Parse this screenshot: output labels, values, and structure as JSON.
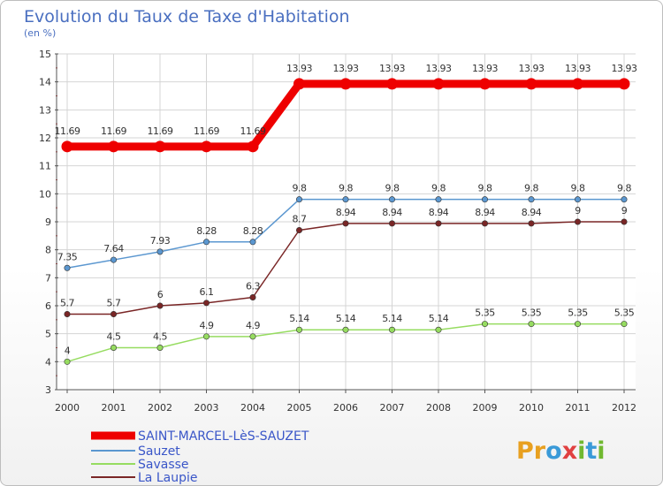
{
  "chart_data": {
    "type": "line",
    "title": "Evolution du Taux de Taxe d'Habitation",
    "subtitle": "(en %)",
    "x": [
      2000,
      2001,
      2002,
      2003,
      2004,
      2005,
      2006,
      2007,
      2008,
      2009,
      2010,
      2011,
      2012
    ],
    "ylim": [
      3,
      15
    ],
    "yticks": [
      3,
      4,
      5,
      6,
      7,
      8,
      9,
      10,
      11,
      12,
      13,
      14,
      15
    ],
    "grid": true,
    "legend": "bottom-left",
    "series": [
      {
        "name": "SAINT-MARCEL-LèS-SAUZET",
        "color": "#ee0000",
        "values": [
          11.69,
          11.69,
          11.69,
          11.69,
          11.69,
          13.93,
          13.93,
          13.93,
          13.93,
          13.93,
          13.93,
          13.93,
          13.93
        ],
        "labels": [
          "11.69",
          "11.69",
          "11.69",
          "11.69",
          "11.69",
          "13.93",
          "13.93",
          "13.93",
          "13.93",
          "13.93",
          "13.93",
          "13.93",
          "13.93"
        ]
      },
      {
        "name": "Sauzet",
        "color": "#5b97d0",
        "values": [
          7.35,
          7.64,
          7.93,
          8.28,
          8.28,
          9.8,
          9.8,
          9.8,
          9.8,
          9.8,
          9.8,
          9.8,
          9.8
        ],
        "labels": [
          "7.35",
          "7.64",
          "7.93",
          "8.28",
          "8.28",
          "9.8",
          "9.8",
          "9.8",
          "9.8",
          "9.8",
          "9.8",
          "9.8",
          "9.8"
        ]
      },
      {
        "name": "Savasse",
        "color": "#96dc60",
        "values": [
          4,
          4.5,
          4.5,
          4.9,
          4.9,
          5.14,
          5.14,
          5.14,
          5.14,
          5.35,
          5.35,
          5.35,
          5.35
        ],
        "labels": [
          "4",
          "4.5",
          "4.5",
          "4.9",
          "4.9",
          "5.14",
          "5.14",
          "5.14",
          "5.14",
          "5.35",
          "5.35",
          "5.35",
          "5.35"
        ]
      },
      {
        "name": "La Laupie",
        "color": "#7a2626",
        "values": [
          5.7,
          5.7,
          6,
          6.1,
          6.3,
          8.7,
          8.94,
          8.94,
          8.94,
          8.94,
          8.94,
          9,
          9
        ],
        "labels": [
          "5.7",
          "5.7",
          "6",
          "6.1",
          "6.3",
          "8.7",
          "8.94",
          "8.94",
          "8.94",
          "8.94",
          "8.94",
          "9",
          "9"
        ]
      }
    ]
  },
  "logo": {
    "text": "Proxiti",
    "letters": [
      {
        "ch": "P",
        "color": "#e8a020"
      },
      {
        "ch": "r",
        "color": "#e8a020"
      },
      {
        "ch": "o",
        "color": "#3a9ad8"
      },
      {
        "ch": "x",
        "color": "#e04040"
      },
      {
        "ch": "i",
        "color": "#70b830"
      },
      {
        "ch": "t",
        "color": "#3a9ad8"
      },
      {
        "ch": "i",
        "color": "#70b830"
      }
    ]
  }
}
